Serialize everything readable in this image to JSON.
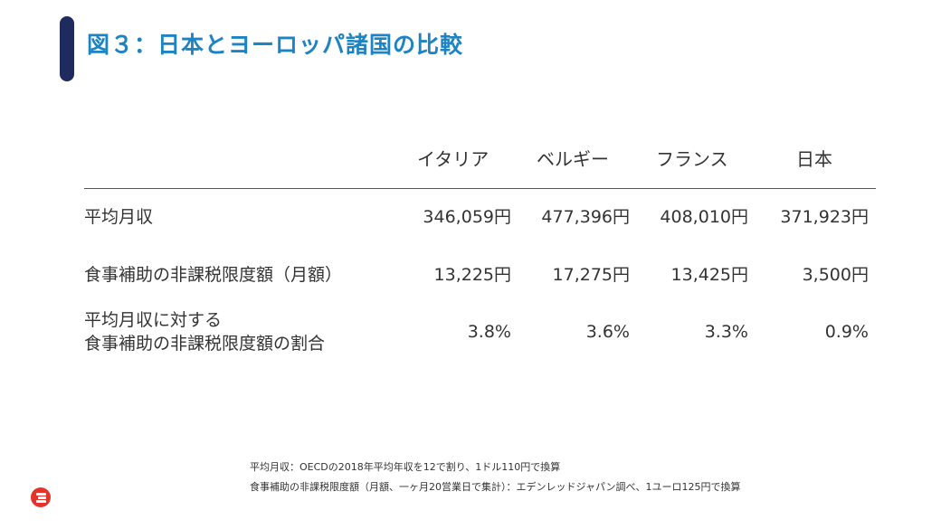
{
  "title": "図３：日本とヨーロッパ諸国の比較",
  "table": {
    "columns": [
      "イタリア",
      "ベルギー",
      "フランス",
      "日本"
    ],
    "rows": [
      {
        "label": "平均月収",
        "values": [
          "346,059円",
          "477,396円",
          "408,010円",
          "371,923円"
        ]
      },
      {
        "label": "食事補助の非課税限度額（月額）",
        "values": [
          "13,225円",
          "17,275円",
          "13,425円",
          "3,500円"
        ]
      },
      {
        "label_line1": "平均月収に対する",
        "label_line2": "食事補助の非課税限度額の割合",
        "values": [
          "3.8%",
          "3.6%",
          "3.3%",
          "0.9%"
        ]
      }
    ]
  },
  "notes": [
    "平均月収：OECDの2018年平均年収を12で割り、1ドル110円で換算",
    "食事補助の非課税限度額（月額、一ヶ月20営業日で集計）：エデンレッドジャパン調べ、1ユーロ125円で換算"
  ],
  "colors": {
    "title": "#1d83c3",
    "accent_bar": "#1f2a5e",
    "logo": "#e6332a"
  },
  "icons": {
    "logo": "edenred-logo-icon"
  }
}
